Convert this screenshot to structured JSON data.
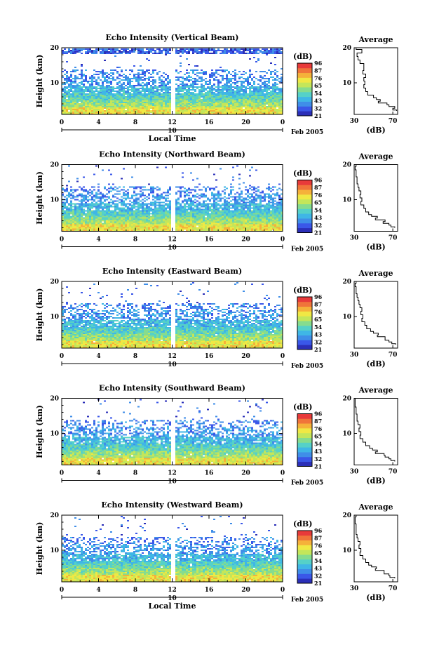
{
  "colors": {
    "scale": [
      "#2b2fb8",
      "#3a57e8",
      "#3f8ee8",
      "#3fb6e6",
      "#55d1c8",
      "#86dc8e",
      "#c4e65a",
      "#f0e844",
      "#f5b13a",
      "#f0743a",
      "#e83a3a"
    ]
  },
  "chart_data": [
    {
      "type": "heatmap",
      "title": "Echo Intensity (Vertical Beam)",
      "ylabel": "Height (km)",
      "xlabel": "Local Time",
      "x_ticks": [
        "0",
        "4",
        "8",
        "12",
        "16",
        "20",
        "0"
      ],
      "xlim": [
        0,
        24
      ],
      "y_ticks": [
        "20",
        "10"
      ],
      "ylim": [
        1,
        20
      ],
      "date_label": "10",
      "month_label": "Feb 2005",
      "colorbar": {
        "unit": "(dB)",
        "ticks": [
          "96",
          "87",
          "76",
          "65",
          "54",
          "43",
          "32",
          "21"
        ],
        "range": [
          21,
          96
        ]
      },
      "data_gap_hour": 12,
      "profile": {
        "title": "Average",
        "xlabel": "(dB)",
        "x_ticks": [
          "30",
          "70"
        ],
        "y_ticks": [
          "20",
          "10"
        ],
        "xlim": [
          30,
          75
        ],
        "ylim": [
          1,
          20
        ],
        "heights": [
          2.0,
          2.5,
          3.0,
          3.5,
          4.0,
          4.5,
          5.0,
          5.5,
          6.0,
          7.0,
          8.0,
          9.0,
          10.0,
          11.0,
          12.0,
          13.0,
          14.0,
          15.0,
          16.0,
          17.0,
          18.0,
          19.0,
          20.0
        ],
        "values": [
          74,
          70,
          72,
          66,
          64,
          55,
          57,
          53,
          50,
          44,
          42,
          40,
          41,
          40,
          42,
          39,
          40,
          40,
          36,
          34,
          33,
          38,
          32
        ]
      }
    },
    {
      "type": "heatmap",
      "title": "Echo Intensity (Northward Beam)",
      "ylabel": "Height (km)",
      "x_ticks": [
        "0",
        "4",
        "8",
        "12",
        "16",
        "20",
        "0"
      ],
      "xlim": [
        0,
        24
      ],
      "y_ticks": [
        "20",
        "10"
      ],
      "ylim": [
        1,
        20
      ],
      "date_label": "10",
      "month_label": "Feb 2005",
      "colorbar": {
        "unit": "(dB)",
        "ticks": [
          "96",
          "87",
          "76",
          "65",
          "54",
          "43",
          "32",
          "21"
        ],
        "range": [
          21,
          96
        ]
      },
      "data_gap_hour": 12,
      "profile": {
        "title": "Average",
        "xlabel": "(dB)",
        "x_ticks": [
          "30",
          "70"
        ],
        "y_ticks": [
          "20",
          "10"
        ],
        "xlim": [
          30,
          75
        ],
        "ylim": [
          1,
          20
        ],
        "heights": [
          2.0,
          2.5,
          3.0,
          3.5,
          4.0,
          4.5,
          5.0,
          5.5,
          6.0,
          7.0,
          8.0,
          9.0,
          10.0,
          11.0,
          12.0,
          13.0,
          14.0,
          15.0,
          16.0,
          17.0,
          18.0,
          19.0,
          20.0
        ],
        "values": [
          72,
          68,
          66,
          60,
          62,
          52,
          54,
          48,
          45,
          42,
          40,
          37,
          38,
          36,
          37,
          35,
          34,
          33,
          33,
          32,
          32,
          31,
          32
        ]
      }
    },
    {
      "type": "heatmap",
      "title": "Echo Intensity (Eastward Beam)",
      "ylabel": "Height (km)",
      "x_ticks": [
        "0",
        "4",
        "8",
        "12",
        "16",
        "20",
        "0"
      ],
      "xlim": [
        0,
        24
      ],
      "y_ticks": [
        "20",
        "10"
      ],
      "ylim": [
        1,
        20
      ],
      "date_label": "10",
      "month_label": "Feb 2005",
      "colorbar": {
        "unit": "(dB)",
        "ticks": [
          "96",
          "87",
          "76",
          "65",
          "54",
          "43",
          "32",
          "21"
        ],
        "range": [
          21,
          96
        ]
      },
      "data_gap_hour": 12,
      "profile": {
        "title": "Average",
        "xlabel": "(dB)",
        "x_ticks": [
          "30",
          "70"
        ],
        "y_ticks": [
          "20",
          "10"
        ],
        "xlim": [
          30,
          75
        ],
        "ylim": [
          1,
          20
        ],
        "heights": [
          2.0,
          2.5,
          3.0,
          3.5,
          4.0,
          4.5,
          5.0,
          5.5,
          6.0,
          7.0,
          8.0,
          9.0,
          10.0,
          11.0,
          12.0,
          13.0,
          14.0,
          15.0,
          16.0,
          17.0,
          18.0,
          19.0,
          20.0
        ],
        "values": [
          73,
          69,
          66,
          62,
          62,
          54,
          55,
          50,
          47,
          43,
          41,
          38,
          39,
          37,
          38,
          36,
          35,
          34,
          33,
          32,
          32,
          31,
          32
        ]
      }
    },
    {
      "type": "heatmap",
      "title": "Echo Intensity (Southward Beam)",
      "ylabel": "Height (km)",
      "x_ticks": [
        "0",
        "4",
        "8",
        "12",
        "16",
        "20",
        "0"
      ],
      "xlim": [
        0,
        24
      ],
      "y_ticks": [
        "20",
        "10"
      ],
      "ylim": [
        1,
        20
      ],
      "date_label": "10",
      "month_label": "Feb 2005",
      "colorbar": {
        "unit": "(dB)",
        "ticks": [
          "96",
          "87",
          "76",
          "65",
          "54",
          "43",
          "32",
          "21"
        ],
        "range": [
          21,
          96
        ]
      },
      "data_gap_hour": 12,
      "profile": {
        "title": "Average",
        "xlabel": "(dB)",
        "x_ticks": [
          "30",
          "70"
        ],
        "y_ticks": [
          "20",
          "10"
        ],
        "xlim": [
          30,
          75
        ],
        "ylim": [
          1,
          20
        ],
        "heights": [
          2.0,
          2.5,
          3.0,
          3.5,
          4.0,
          4.5,
          5.0,
          5.5,
          6.0,
          7.0,
          8.0,
          9.0,
          10.0,
          11.0,
          12.0,
          13.0,
          14.0,
          15.0,
          16.0,
          17.0,
          18.0,
          19.0,
          20.0
        ],
        "values": [
          72,
          68,
          66,
          62,
          61,
          52,
          54,
          49,
          46,
          42,
          39,
          36,
          37,
          35,
          36,
          34,
          33,
          33,
          32,
          32,
          31,
          31,
          31
        ]
      }
    },
    {
      "type": "heatmap",
      "title": "Echo Intensity (Westward Beam)",
      "ylabel": "Height (km)",
      "xlabel": "Local Time",
      "x_ticks": [
        "0",
        "4",
        "8",
        "12",
        "16",
        "20",
        "0"
      ],
      "xlim": [
        0,
        24
      ],
      "y_ticks": [
        "20",
        "10"
      ],
      "ylim": [
        1,
        20
      ],
      "date_label": "10",
      "month_label": "Feb 2005",
      "colorbar": {
        "unit": "(dB)",
        "ticks": [
          "96",
          "87",
          "76",
          "65",
          "54",
          "43",
          "32",
          "21"
        ],
        "range": [
          21,
          96
        ]
      },
      "data_gap_hour": 12,
      "profile": {
        "title": "Average",
        "xlabel": "(dB)",
        "x_ticks": [
          "30",
          "70"
        ],
        "y_ticks": [
          "20",
          "10"
        ],
        "xlim": [
          30,
          75
        ],
        "ylim": [
          1,
          20
        ],
        "heights": [
          2.0,
          2.5,
          3.0,
          3.5,
          4.0,
          4.5,
          5.0,
          5.5,
          6.0,
          7.0,
          8.0,
          9.0,
          10.0,
          11.0,
          12.0,
          13.0,
          14.0,
          15.0,
          16.0,
          17.0,
          18.0,
          19.0,
          20.0
        ],
        "values": [
          72,
          67,
          66,
          61,
          61,
          52,
          53,
          48,
          45,
          42,
          39,
          36,
          37,
          35,
          36,
          34,
          33,
          32,
          32,
          32,
          31,
          31,
          32
        ]
      }
    }
  ]
}
